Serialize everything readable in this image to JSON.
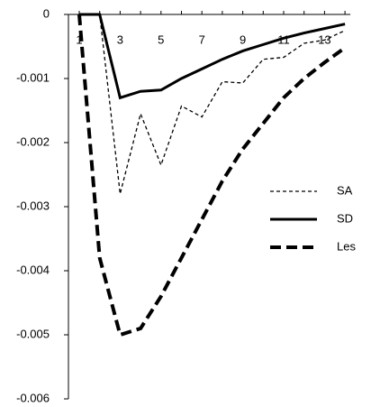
{
  "chart_data": {
    "type": "line",
    "categories": [
      "1",
      null,
      "3",
      null,
      "5",
      null,
      "7",
      null,
      "9",
      null,
      "11",
      null,
      "13",
      null
    ],
    "series": [
      {
        "name": "SA",
        "color": "#000000",
        "style": "thin-dashed",
        "values": [
          0,
          0,
          -0.0028,
          -0.00155,
          -0.00235,
          -0.00143,
          -0.0016,
          -0.00105,
          -0.00107,
          -0.0007,
          -0.00067,
          -0.00045,
          -0.0004,
          -0.00025
        ]
      },
      {
        "name": "SD",
        "color": "#000000",
        "style": "solid",
        "values": [
          0,
          0,
          -0.0013,
          -0.0012,
          -0.00118,
          -0.001,
          -0.00085,
          -0.0007,
          -0.00057,
          -0.00047,
          -0.00037,
          -0.00029,
          -0.00022,
          -0.00015
        ]
      },
      {
        "name": "Les",
        "color": "#000000",
        "style": "thick-dashed",
        "values": [
          0,
          -0.0038,
          -0.005,
          -0.0049,
          -0.0044,
          -0.0038,
          -0.0032,
          -0.0026,
          -0.0021,
          -0.0017,
          -0.0013,
          -0.001,
          -0.00075,
          -0.00052
        ]
      }
    ],
    "ylim": [
      0,
      -0.006
    ],
    "yticks": [
      0,
      -0.001,
      -0.002,
      -0.003,
      -0.004,
      -0.005,
      -0.006
    ],
    "legend": "right"
  }
}
